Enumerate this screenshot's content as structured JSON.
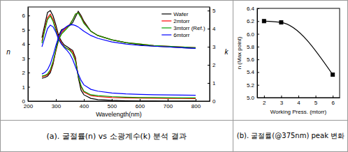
{
  "chart_data": [
    {
      "type": "line",
      "title": "(a). 굴절률(n) vs 소광계수(k) 분석 결과",
      "xlabel": "Wavelength(nm)",
      "ylabel": "n",
      "y2label": "k",
      "xlim": [
        200,
        850
      ],
      "ylim": [
        0,
        6.6
      ],
      "y2lim": [
        0,
        5.2
      ],
      "xticks": [
        200,
        300,
        400,
        500,
        600,
        700,
        800
      ],
      "yticks": [
        0,
        1,
        2,
        3,
        4,
        5,
        6
      ],
      "y2ticks": [
        0,
        1,
        2,
        3,
        4,
        5
      ],
      "legend": "upper right",
      "x": [
        250,
        260,
        270,
        280,
        290,
        300,
        310,
        320,
        330,
        340,
        350,
        360,
        370,
        380,
        390,
        400,
        425,
        450,
        500,
        550,
        600,
        650,
        700,
        750,
        800
      ],
      "series": [
        {
          "name": "Wafer",
          "color": "#000000",
          "values": [
            1.6,
            1.65,
            1.75,
            2.0,
            2.6,
            3.6,
            4.6,
            5.0,
            5.1,
            5.2,
            5.3,
            5.5,
            5.9,
            6.3,
            6.0,
            5.6,
            4.9,
            4.6,
            4.3,
            4.1,
            3.95,
            3.85,
            3.8,
            3.75,
            3.7
          ],
          "k": [
            3.5,
            4.2,
            4.9,
            5.0,
            4.7,
            4.2,
            3.6,
            3.3,
            3.1,
            3.0,
            2.9,
            2.8,
            2.4,
            1.3,
            0.6,
            0.35,
            0.15,
            0.08,
            0.04,
            0.02,
            0.01,
            0.01,
            0.0,
            0.0,
            0.0
          ]
        },
        {
          "name": "2mtorr",
          "color": "#ff0000",
          "values": [
            1.7,
            1.75,
            1.85,
            2.1,
            2.7,
            3.5,
            4.3,
            4.8,
            5.0,
            5.2,
            5.4,
            5.7,
            6.1,
            6.2,
            5.9,
            5.5,
            4.9,
            4.6,
            4.3,
            4.1,
            4.0,
            3.9,
            3.85,
            3.8,
            3.75
          ],
          "k": [
            3.3,
            4.0,
            4.6,
            4.8,
            4.5,
            4.0,
            3.5,
            3.2,
            3.0,
            2.9,
            2.85,
            2.7,
            2.3,
            1.4,
            0.8,
            0.5,
            0.3,
            0.25,
            0.2,
            0.18,
            0.17,
            0.16,
            0.15,
            0.15,
            0.14
          ]
        },
        {
          "name": "3mtorr (Ref.)",
          "color": "#00a000",
          "values": [
            1.75,
            1.8,
            1.9,
            2.2,
            2.8,
            3.6,
            4.3,
            4.7,
            4.9,
            5.1,
            5.35,
            5.7,
            6.1,
            6.18,
            5.85,
            5.45,
            4.9,
            4.6,
            4.3,
            4.1,
            4.0,
            3.9,
            3.85,
            3.8,
            3.75
          ],
          "k": [
            3.2,
            3.9,
            4.5,
            4.7,
            4.4,
            3.9,
            3.4,
            3.15,
            3.0,
            2.9,
            2.8,
            2.6,
            2.2,
            1.4,
            0.85,
            0.55,
            0.35,
            0.3,
            0.25,
            0.22,
            0.2,
            0.2,
            0.19,
            0.18,
            0.18
          ]
        },
        {
          "name": "6mtorr",
          "color": "#0000ff",
          "values": [
            1.9,
            2.0,
            2.2,
            2.6,
            3.2,
            3.9,
            4.5,
            4.9,
            5.1,
            5.25,
            5.35,
            5.36,
            5.3,
            5.2,
            5.05,
            4.9,
            4.6,
            4.4,
            4.15,
            4.0,
            3.9,
            3.85,
            3.8,
            3.75,
            3.7
          ],
          "k": [
            3.0,
            3.5,
            4.0,
            4.2,
            4.1,
            3.8,
            3.4,
            3.15,
            2.95,
            2.8,
            2.6,
            2.3,
            1.9,
            1.5,
            1.15,
            0.9,
            0.65,
            0.55,
            0.45,
            0.4,
            0.37,
            0.35,
            0.34,
            0.33,
            0.32
          ]
        }
      ]
    },
    {
      "type": "line",
      "title": "(b). 굴절률(@375nm) peak 변화",
      "xlabel": "Working Press. (mtorr)",
      "ylabel": "n (Max point)",
      "xlim": [
        1.6,
        6.4
      ],
      "ylim": [
        5.0,
        6.4
      ],
      "xticks": [
        2,
        3,
        4,
        5,
        6
      ],
      "yticks": [
        {
          "value": 5,
          "label": "5.0"
        },
        5.2,
        5.4,
        5.6,
        5.8,
        {
          "value": 6,
          "label": "6.0"
        },
        6.2,
        6.4
      ],
      "x": [
        2,
        3,
        6
      ],
      "values": [
        6.2,
        6.18,
        5.36
      ],
      "color": "#000000",
      "marker": "square"
    }
  ]
}
